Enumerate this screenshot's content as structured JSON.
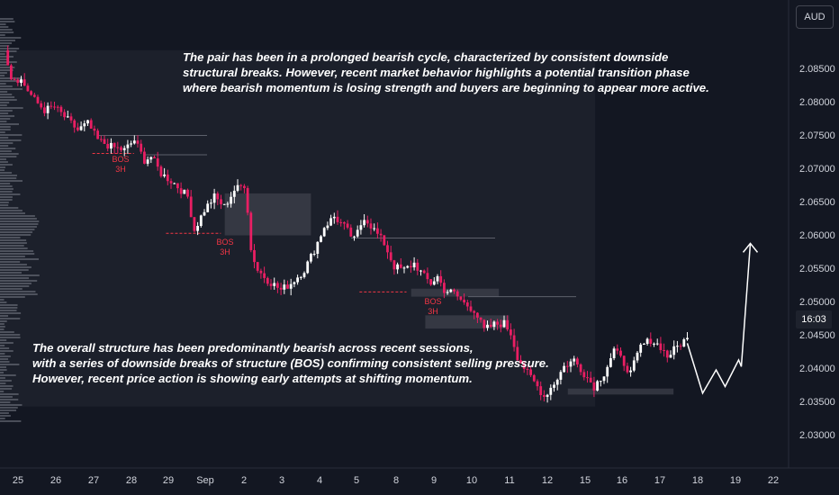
{
  "currency_button": "AUD",
  "countdown_label": "16:03",
  "annotations": {
    "top_lines": [
      "The pair has been in a prolonged bearish cycle, characterized by consistent downside",
      "structural breaks. However, recent market behavior highlights a potential transition phase",
      " where bearish momentum is losing strength and buyers are beginning to appear more active."
    ],
    "bottom_lines": [
      "The overall structure has been predominantly bearish across recent sessions,",
      " with a series of downside breaks of structure (BOS) confirming consistent selling pressure.",
      "  However, recent price action is showing early attempts at shifting momentum."
    ]
  },
  "bos_labels": [
    {
      "line1": "BOS",
      "line2": "3H"
    },
    {
      "line1": "BOS",
      "line2": "3H"
    },
    {
      "line1": "BOS",
      "line2": "3H"
    }
  ],
  "colors": {
    "background": "#131722",
    "bullish_candle": "#ffffff",
    "bearish_candle": "#e91e63",
    "bos_line": "#f23645",
    "zone": "#4a4d57",
    "projection": "#ffffff"
  },
  "chart_data": {
    "type": "candlestick",
    "y_axis_ticks": [
      "2.08500",
      "2.08000",
      "2.07500",
      "2.07000",
      "2.06500",
      "2.06000",
      "2.05500",
      "2.05000",
      "2.04500",
      "2.04000",
      "2.03500",
      "2.03000"
    ],
    "x_axis_ticks": [
      "25",
      "26",
      "27",
      "28",
      "29",
      "Sep",
      "2",
      "3",
      "4",
      "5",
      "8",
      "9",
      "10",
      "11",
      "12",
      "15",
      "16",
      "17",
      "18",
      "19",
      "22"
    ],
    "ylim": [
      2.0275,
      2.0895
    ],
    "waypoints": [
      [
        0,
        2.0885
      ],
      [
        2,
        2.084
      ],
      [
        5,
        2.0835
      ],
      [
        9,
        2.0805
      ],
      [
        12,
        2.079
      ],
      [
        15,
        2.0795
      ],
      [
        18,
        2.078
      ],
      [
        22,
        2.076
      ],
      [
        25,
        2.077
      ],
      [
        28,
        2.0745
      ],
      [
        32,
        2.0735
      ],
      [
        36,
        2.073
      ],
      [
        39,
        2.0745
      ],
      [
        42,
        2.0715
      ],
      [
        44,
        2.072
      ],
      [
        47,
        2.0695
      ],
      [
        51,
        2.068
      ],
      [
        55,
        2.066
      ],
      [
        57,
        2.061
      ],
      [
        60,
        2.064
      ],
      [
        63,
        2.066
      ],
      [
        66,
        2.0645
      ],
      [
        69,
        2.067
      ],
      [
        72,
        2.0678
      ],
      [
        73,
        2.064
      ],
      [
        74,
        2.058
      ],
      [
        76,
        2.055
      ],
      [
        79,
        2.0535
      ],
      [
        83,
        2.052
      ],
      [
        86,
        2.053
      ],
      [
        90,
        2.055
      ],
      [
        93,
        2.058
      ],
      [
        96,
        2.0615
      ],
      [
        99,
        2.063
      ],
      [
        102,
        2.0615
      ],
      [
        105,
        2.0595
      ],
      [
        108,
        2.063
      ],
      [
        111,
        2.061
      ],
      [
        114,
        2.059
      ],
      [
        117,
        2.0555
      ],
      [
        120,
        2.055
      ],
      [
        123,
        2.056
      ],
      [
        126,
        2.054
      ],
      [
        128,
        2.053
      ],
      [
        130,
        2.054
      ],
      [
        132,
        2.052
      ],
      [
        135,
        2.0515
      ],
      [
        138,
        2.05
      ],
      [
        141,
        2.049
      ],
      [
        144,
        2.046
      ],
      [
        147,
        2.0468
      ],
      [
        150,
        2.047
      ],
      [
        152,
        2.0455
      ],
      [
        154,
        2.042
      ],
      [
        157,
        2.0395
      ],
      [
        160,
        2.0375
      ],
      [
        162,
        2.036
      ],
      [
        165,
        2.038
      ],
      [
        168,
        2.0405
      ],
      [
        171,
        2.0415
      ],
      [
        174,
        2.0395
      ],
      [
        177,
        2.0375
      ],
      [
        180,
        2.0395
      ],
      [
        183,
        2.043
      ],
      [
        186,
        2.041
      ],
      [
        188,
        2.0395
      ],
      [
        191,
        2.0435
      ],
      [
        194,
        2.0445
      ],
      [
        197,
        2.0435
      ],
      [
        199,
        2.042
      ],
      [
        202,
        2.0435
      ],
      [
        205,
        2.0448
      ]
    ],
    "projection": [
      [
        2.044,
        0
      ],
      [
        2.0365,
        17
      ],
      [
        2.04,
        32
      ],
      [
        2.0375,
        42
      ],
      [
        2.0415,
        57
      ],
      [
        2.0405,
        60
      ],
      [
        2.059,
        70
      ]
    ],
    "zones": [
      {
        "x1": 0.0,
        "x2": 0.76,
        "y_top": 2.088,
        "y_bottom": 2.0345
      },
      {
        "x1": 0.287,
        "x2": 0.397,
        "y_top": 2.0665,
        "y_bottom": 2.0602
      },
      {
        "x1": 0.525,
        "x2": 0.637,
        "y_top": 2.0522,
        "y_bottom": 2.051
      },
      {
        "x1": 0.543,
        "x2": 0.65,
        "y_top": 2.0482,
        "y_bottom": 2.0462
      },
      {
        "x1": 0.725,
        "x2": 0.86,
        "y_top": 2.0372,
        "y_bottom": 2.0363
      }
    ],
    "bos_levels": [
      {
        "price": 2.0725,
        "x1": 0.118,
        "x2": 0.171
      },
      {
        "price": 2.0605,
        "x1": 0.212,
        "x2": 0.282
      },
      {
        "price": 2.0517,
        "x1": 0.459,
        "x2": 0.519
      }
    ]
  }
}
